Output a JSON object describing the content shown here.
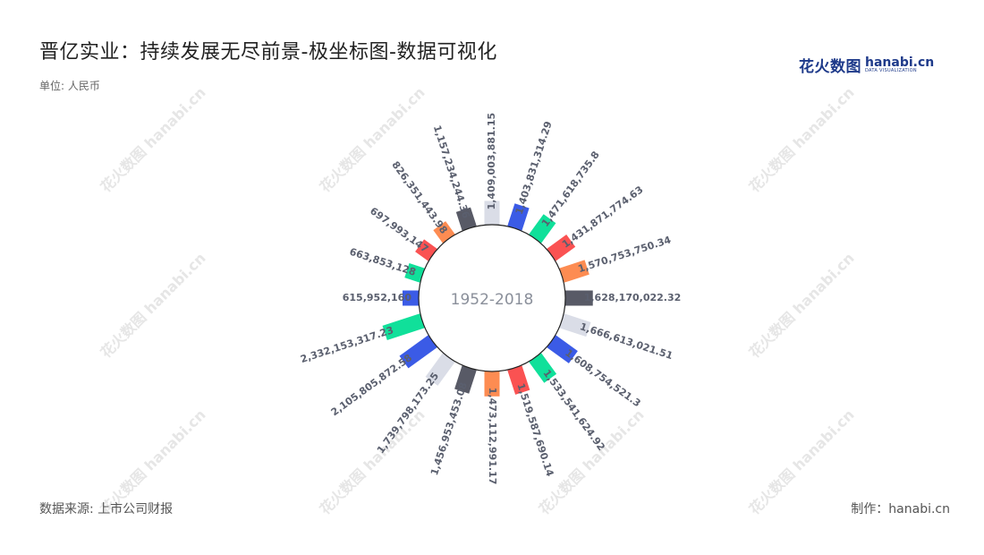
{
  "title": "晋亿实业：持续发展无尽前景-极坐标图-数据可视化",
  "unit": "单位: 人民币",
  "center_label": "1952-2018",
  "source": "数据来源: 上市公司财报",
  "credit": "制作：hanabi.cn",
  "logo": {
    "cn": "花火数图",
    "domain": "hanabi.cn",
    "sub": "DATA VISUALIZATION"
  },
  "watermark": {
    "cn": "花火数图",
    "en": "hanabi.cn"
  },
  "colors": {
    "palette": [
      "#3b5be6",
      "#10e09a",
      "#fa5252",
      "#fd8c52",
      "#585a66",
      "#dadde7"
    ],
    "center_text": "#8a8f9a",
    "label": "#5a5f6e"
  },
  "chart_data": {
    "type": "bar",
    "polar": true,
    "center_label": "1952-2018",
    "values": [
      1409003881.15,
      1403831314.29,
      1471618735.8,
      1431871774.63,
      1570753750.34,
      1628170022.32,
      1666613021.51,
      1608754521.3,
      1533541624.92,
      1519587690.14,
      1473112991.17,
      1456953453.08,
      1739798173.25,
      2105805872.58,
      2332153317.23,
      615952160,
      663853128,
      697993147,
      826351443.98,
      1157234244.36
    ],
    "labels": [
      "1,409,003,881.15",
      "1,403,831,314.29",
      "1,471,618,735.8",
      "1,431,871,774.63",
      "1,570,753,750.34",
      "1,628,170,022.32",
      "1,666,613,021.51",
      "1,608,754,521.3",
      "1,533,541,624.92",
      "1,519,587,690.14",
      "1,473,112,991.17",
      "1,456,953,453.08",
      "1,739,798,173.25",
      "2,105,805,872.58",
      "2,332,153,317.23",
      "615,952,160",
      "663,853,128",
      "697,993,147",
      "826,351,443.98",
      "1,157,234,244.36"
    ],
    "bar_colors": [
      "#dadde7",
      "#3b5be6",
      "#10e09a",
      "#fa5252",
      "#fd8c52",
      "#585a66",
      "#dadde7",
      "#3b5be6",
      "#10e09a",
      "#fa5252",
      "#fd8c52",
      "#585a66",
      "#dadde7",
      "#3b5be6",
      "#10e09a",
      "#3b5be6",
      "#10e09a",
      "#fa5252",
      "#fd8c52",
      "#585a66"
    ],
    "legend": "none",
    "grid": false
  }
}
